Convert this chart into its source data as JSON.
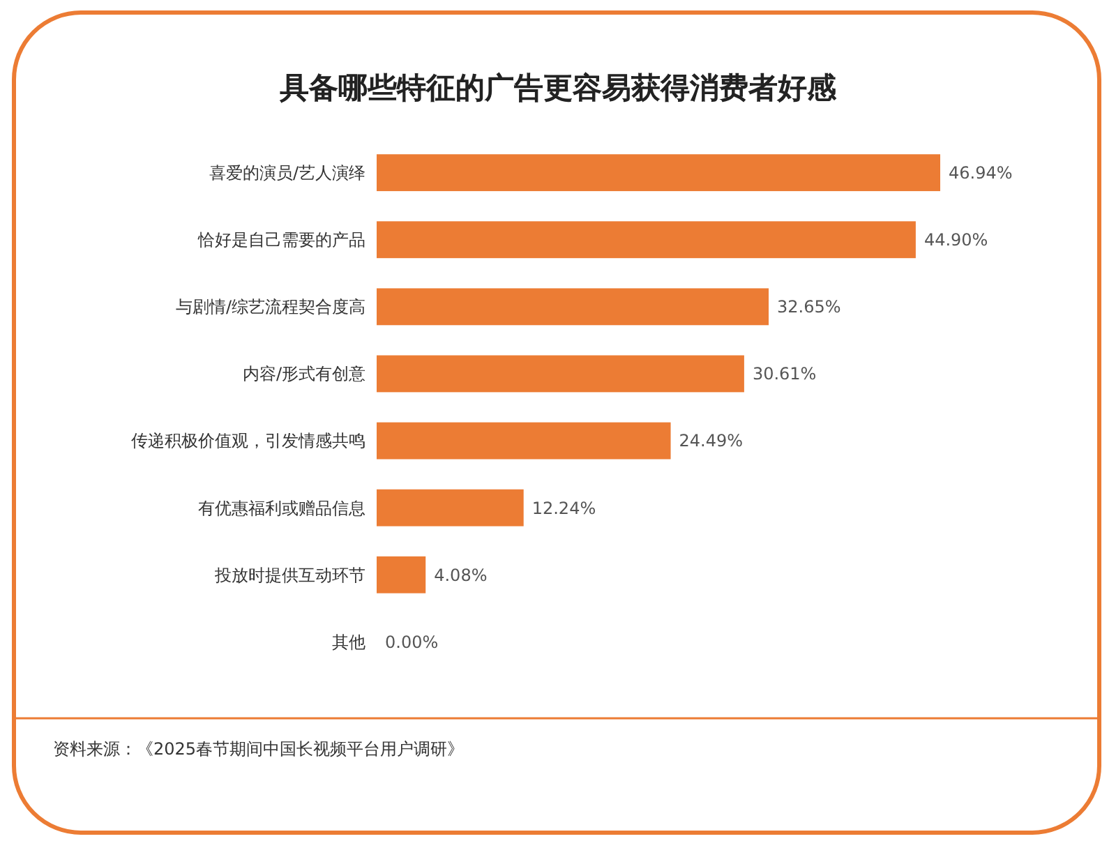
{
  "chart_data": {
    "type": "bar",
    "orientation": "horizontal",
    "title": "具备哪些特征的广告更容易获得消费者好感",
    "categories": [
      "喜爱的演员/艺人演绎",
      "恰好是自己需要的产品",
      "与剧情/综艺流程契合度高",
      "内容/形式有创意",
      "传递积极价值观，引发情感共鸣",
      "有优惠福利或赠品信息",
      "投放时提供互动环节",
      "其他"
    ],
    "values": [
      46.94,
      44.9,
      32.65,
      30.61,
      24.49,
      12.24,
      4.08,
      0.0
    ],
    "value_labels": [
      "46.94%",
      "44.90%",
      "32.65%",
      "30.61%",
      "24.49%",
      "12.24%",
      "4.08%",
      "0.00%"
    ],
    "color": "#ec7c34",
    "annotations": [
      "资料来源：《2025春节期间中国长视频平台用户调研》"
    ]
  }
}
